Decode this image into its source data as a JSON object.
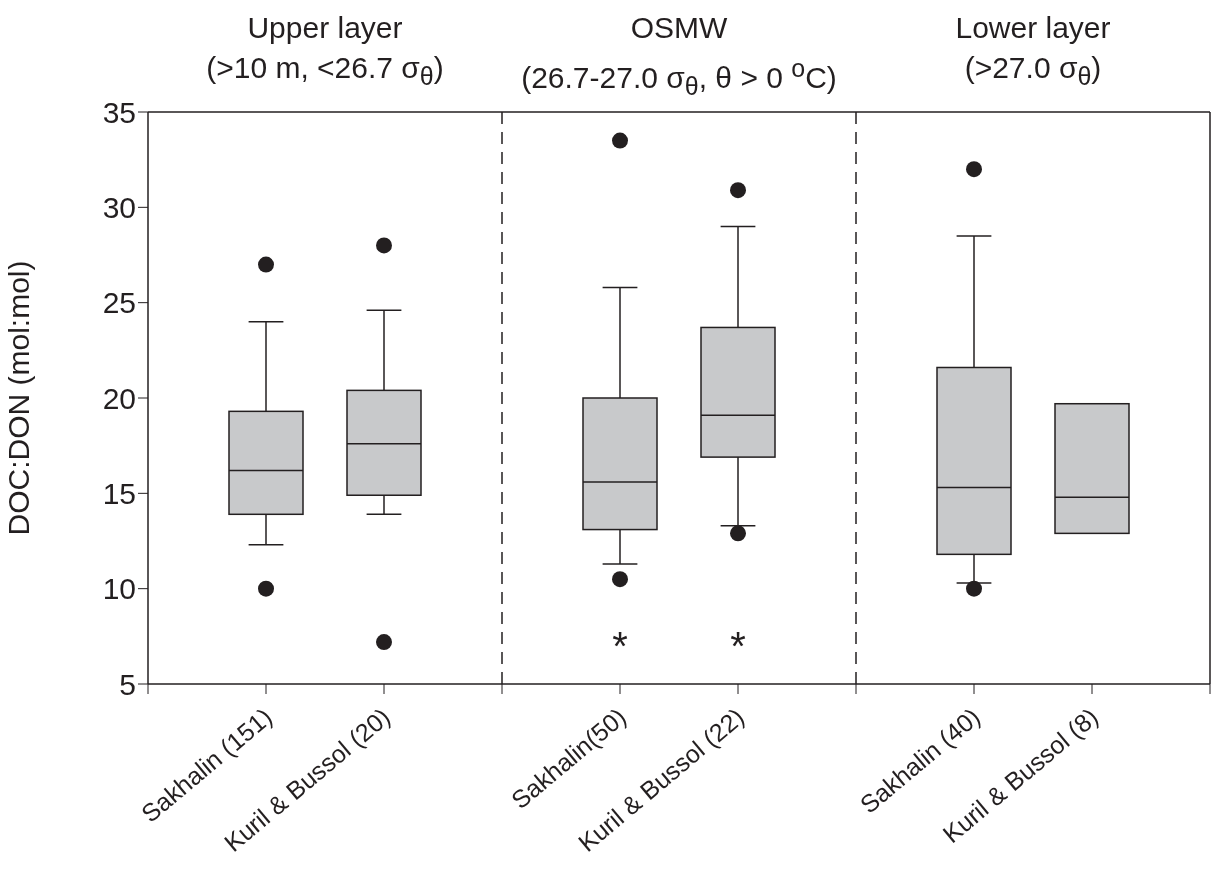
{
  "chart_data": {
    "type": "box",
    "ylabel": "DOC:DON (mol:mol)",
    "categories": [
      "Sakhalin (151)",
      "Kuril & Bussol (20)",
      "Sakhalin(50)",
      "Kuril & Bussol (22)",
      "Sakhalin (40)",
      "Kuril & Bussol (8)"
    ],
    "color": "#c8c9cb",
    "boxes": [
      {
        "low": 12.3,
        "q1": 13.9,
        "median": 16.2,
        "q3": 19.3,
        "high": 24,
        "outliers": [
          27,
          10
        ]
      },
      {
        "low": 13.9,
        "q1": 14.9,
        "median": 17.6,
        "q3": 20.4,
        "high": 24.6,
        "outliers": [
          28,
          7.2
        ]
      },
      {
        "low": 11.3,
        "q1": 13.1,
        "median": 15.6,
        "q3": 20,
        "high": 25.8,
        "outliers": [
          33.5,
          10.5
        ]
      },
      {
        "low": 13.3,
        "q1": 16.9,
        "median": 19.1,
        "q3": 23.7,
        "high": 29,
        "outliers": [
          30.9,
          12.9
        ]
      },
      {
        "low": 10.3,
        "q1": 11.8,
        "median": 15.3,
        "q3": 21.6,
        "high": 28.5,
        "outliers": [
          32,
          10
        ]
      },
      {
        "low": 12.9,
        "q1": 12.9,
        "median": 14.8,
        "q3": 19.7,
        "high": 19.7
      }
    ],
    "ylim": [
      5,
      35
    ],
    "yticks": [
      5,
      10,
      15,
      20,
      25,
      30,
      35
    ],
    "grid": false,
    "annotations": [
      "Upper layer\n(>10 m, <26.7 σ$_{θ}$)",
      "OSMW\n(26.7-27.0 σ$_{θ}$, θ > 0 $^{o}$C)",
      "Lower layer\n(>27.0 σ$_{θ}$)"
    ],
    "value_labels": [
      null,
      null,
      "*",
      "*",
      null,
      null
    ]
  }
}
